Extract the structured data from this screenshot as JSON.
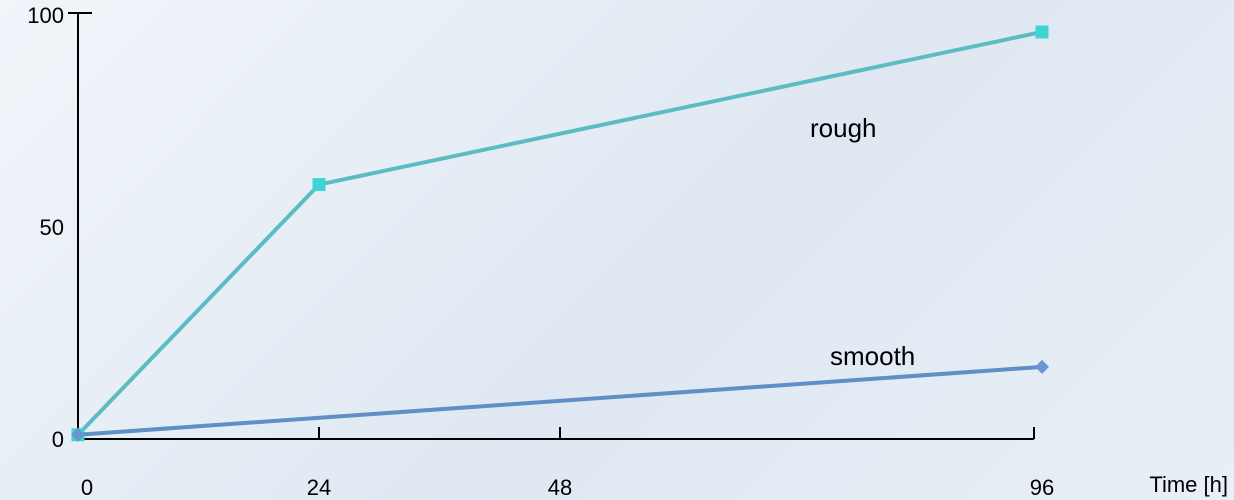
{
  "chart_data": {
    "type": "line",
    "x_ticks": [
      0,
      24,
      48,
      96
    ],
    "y_ticks": [
      0,
      50,
      100
    ],
    "xlim": [
      0,
      96
    ],
    "ylim": [
      0,
      100
    ],
    "xlabel": "Time [h]",
    "ylabel": "",
    "title": "",
    "grid": false,
    "series": [
      {
        "name": "rough",
        "x": [
          0,
          24,
          96
        ],
        "y": [
          1,
          60,
          96
        ],
        "color": "#5bbcc3",
        "marker_color": "#3fd4d4",
        "marker": "square"
      },
      {
        "name": "smooth",
        "x": [
          0,
          96
        ],
        "y": [
          1,
          17
        ],
        "color": "#5f8fc4",
        "marker_color": "#6a95cf",
        "marker": "diamond"
      }
    ]
  }
}
